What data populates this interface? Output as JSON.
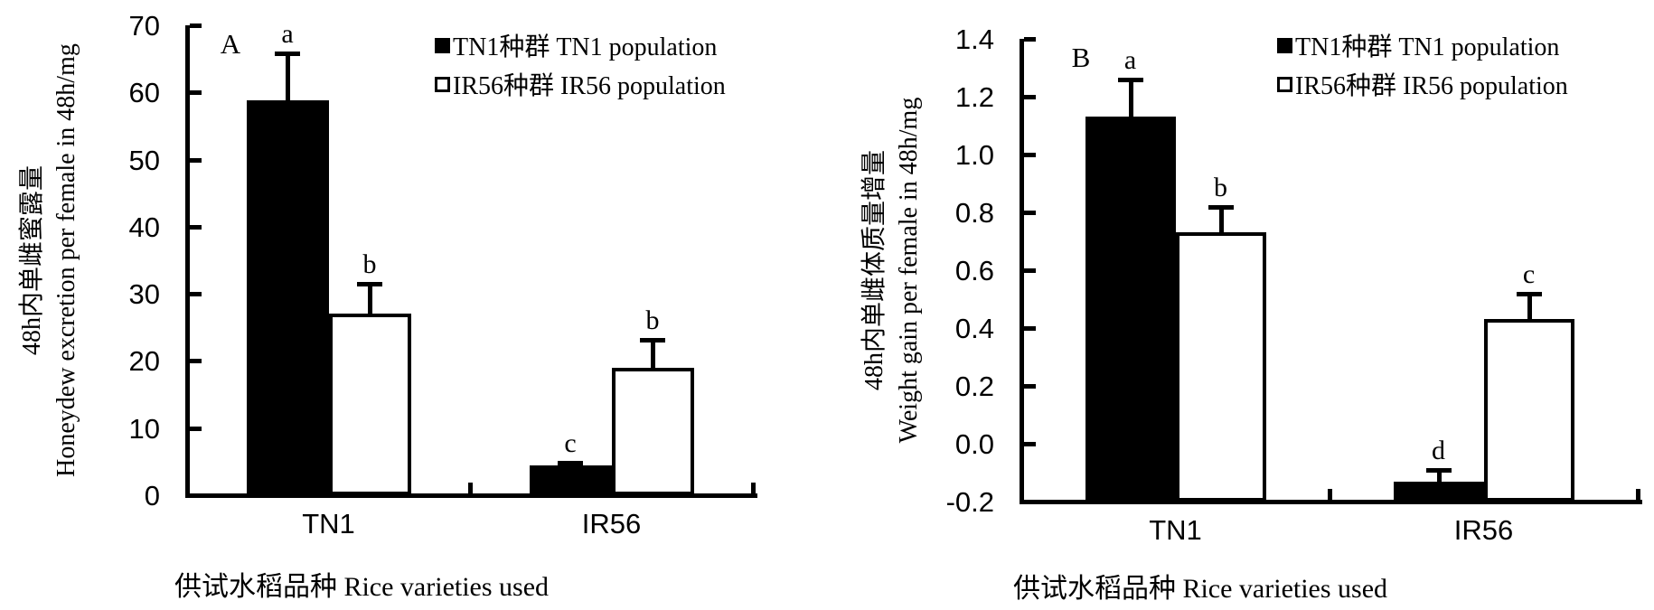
{
  "colors": {
    "foreground": "#000000",
    "background": "#ffffff",
    "bar_filled": "#000000",
    "bar_open": "#ffffff"
  },
  "chart_data": [
    {
      "id": "A",
      "type": "bar",
      "panel_letter": "A",
      "ylabel_zh": "48h内单雌蜜露量",
      "ylabel_en": "Honeydew excretion per female in 48h/mg",
      "xlabel": "供试水稻品种 Rice varieties used",
      "categories": [
        "TN1",
        "IR56"
      ],
      "ylim": [
        0,
        70
      ],
      "ytick_labels": [
        "0",
        "10",
        "20",
        "30",
        "40",
        "50",
        "60",
        "70"
      ],
      "grid": false,
      "legend_position": "top-right-inside",
      "series": [
        {
          "name": "TN1种群 TN1 population",
          "fill": "#000000",
          "values": [
            58.8,
            4.5
          ],
          "error_top": [
            65.8,
            4.9
          ],
          "sig_letters": [
            "a",
            "c"
          ]
        },
        {
          "name": "IR56种群 IR56 population",
          "fill": "#ffffff",
          "values": [
            27.0,
            19.0
          ],
          "error_top": [
            31.5,
            23.2
          ],
          "sig_letters": [
            "b",
            "b"
          ]
        }
      ]
    },
    {
      "id": "B",
      "type": "bar",
      "panel_letter": "B",
      "ylabel_zh": "48h内单雌体质量增量",
      "ylabel_en": "Weight gain per female in 48h/mg",
      "xlabel": "供试水稻品种 Rice varieties used",
      "categories": [
        "TN1",
        "IR56"
      ],
      "ylim": [
        -0.2,
        1.4
      ],
      "ytick_labels": [
        "-0.2",
        "0.0",
        "0.2",
        "0.4",
        "0.6",
        "0.8",
        "1.0",
        "1.2",
        "1.4"
      ],
      "grid": false,
      "legend_position": "top-right-inside",
      "series": [
        {
          "name": "TN1种群 TN1 population",
          "fill": "#000000",
          "values": [
            1.13,
            -0.13
          ],
          "error_top": [
            1.26,
            -0.09
          ],
          "sig_letters": [
            "a",
            "d"
          ]
        },
        {
          "name": "IR56种群 IR56 population",
          "fill": "#ffffff",
          "values": [
            0.73,
            0.43
          ],
          "error_top": [
            0.82,
            0.52
          ],
          "sig_letters": [
            "b",
            "c"
          ]
        }
      ]
    }
  ]
}
